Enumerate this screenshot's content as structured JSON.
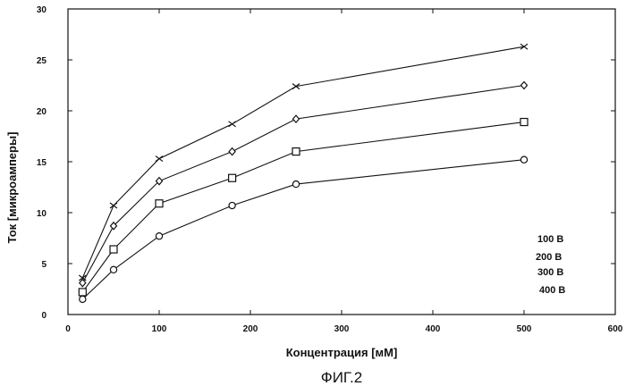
{
  "chart_data": {
    "type": "line",
    "title": "",
    "xlabel": "Концентрация [мМ]",
    "ylabel": "Ток [микроамперы]",
    "xlim": [
      0,
      600
    ],
    "ylim": [
      0,
      30
    ],
    "xticks": [
      0,
      100,
      200,
      300,
      400,
      500,
      600
    ],
    "yticks": [
      0,
      5,
      10,
      15,
      20,
      25,
      30
    ],
    "grid": false,
    "legend_position": "right",
    "x": [
      16,
      50,
      100,
      180,
      250,
      500
    ],
    "series": [
      {
        "name": "100 B",
        "marker": "circle",
        "values": [
          1.5,
          4.4,
          7.7,
          10.7,
          12.8,
          15.2
        ]
      },
      {
        "name": "200 B",
        "marker": "square",
        "values": [
          2.2,
          6.4,
          10.9,
          13.4,
          16.0,
          18.9
        ]
      },
      {
        "name": "300 B",
        "marker": "diamond",
        "values": [
          3.1,
          8.7,
          13.1,
          16.0,
          19.2,
          22.5
        ]
      },
      {
        "name": "400 B",
        "marker": "x",
        "values": [
          3.6,
          10.7,
          15.3,
          18.7,
          22.4,
          26.3
        ]
      }
    ],
    "legend_labels": [
      "100 B",
      "200 B",
      "300 B",
      "400 B"
    ]
  },
  "caption": "ФИГ.2"
}
